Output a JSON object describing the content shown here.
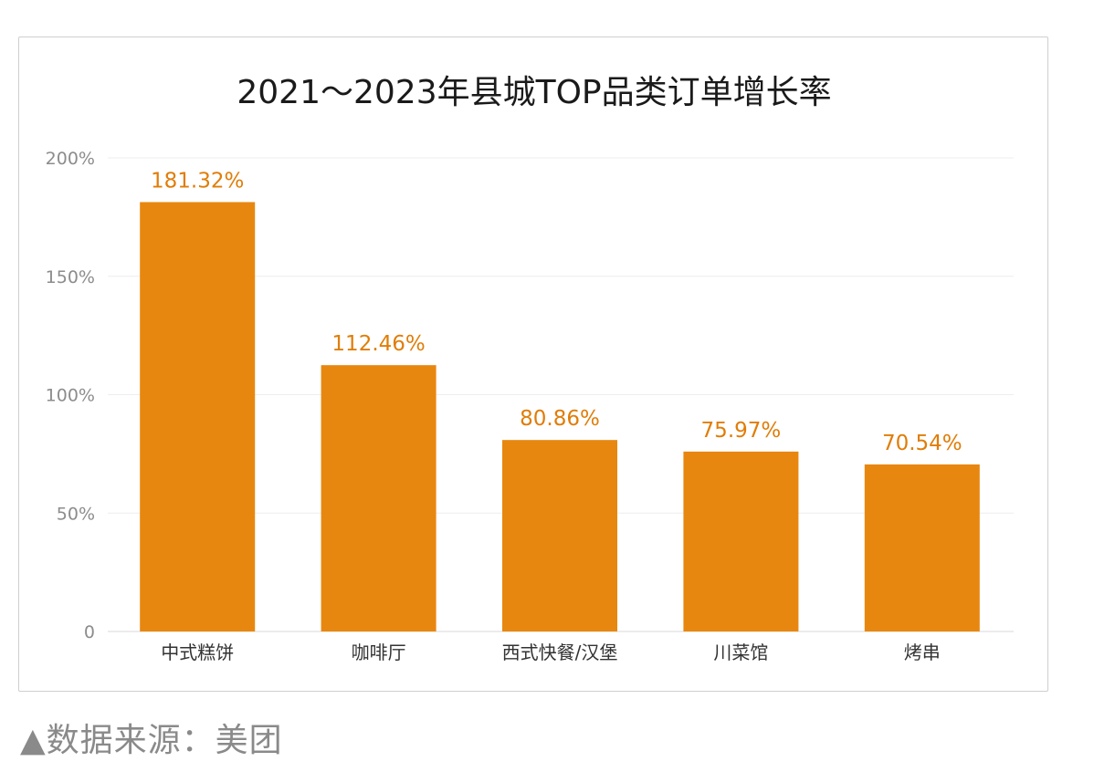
{
  "chart_data": {
    "type": "bar",
    "title": "2021～2023年县城TOP品类订单增长率",
    "categories": [
      "中式糕饼",
      "咖啡厅",
      "西式快餐/汉堡",
      "川菜馆",
      "烤串"
    ],
    "values": [
      181.32,
      112.46,
      80.86,
      75.97,
      70.54
    ],
    "value_labels": [
      "181.32%",
      "112.46%",
      "80.86%",
      "75.97%",
      "70.54%"
    ],
    "ylim": [
      0,
      200
    ],
    "yticks": [
      0,
      50,
      100,
      150,
      200
    ],
    "ytick_labels": [
      "0",
      "50%",
      "100%",
      "150%",
      "200%"
    ],
    "xlabel": "",
    "ylabel": "",
    "grid": true,
    "bar_color": "#E8870F",
    "label_color": "#E07D08"
  },
  "source_note": "▲数据来源：美团"
}
